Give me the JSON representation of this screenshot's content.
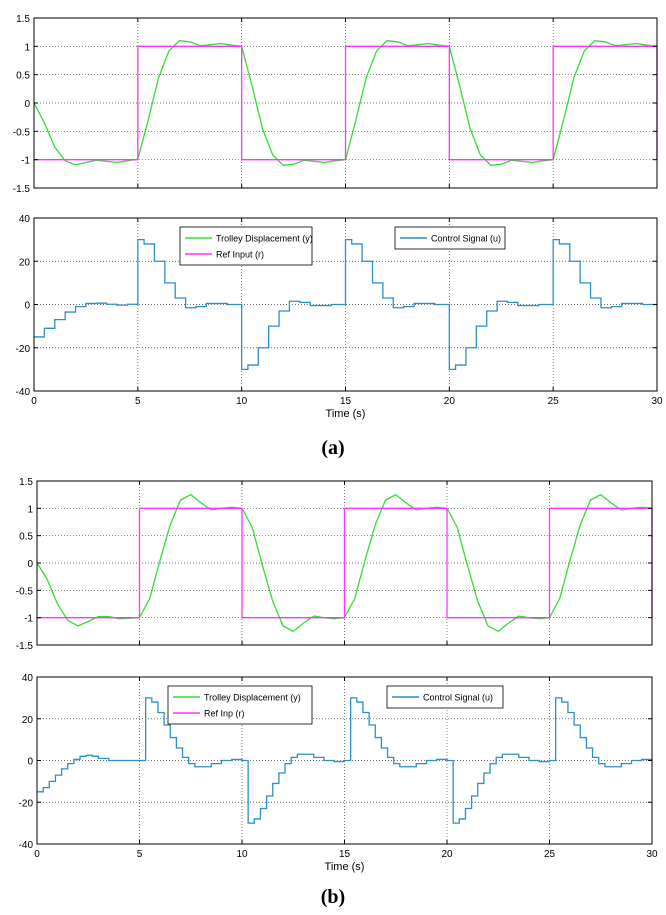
{
  "figure": {
    "label_a": "(a)",
    "label_b": "(b)",
    "colors": {
      "output": "#33dd33",
      "reference": "#ff33ff",
      "control": "#2b8fc8"
    }
  },
  "chart_data": [
    {
      "type": "line",
      "panel": "(a)",
      "subplot": "top",
      "xlabel": "",
      "ylabel": "",
      "xlim": [
        0,
        30
      ],
      "ylim": [
        -1.5,
        1.5
      ],
      "xticks": [
        0,
        5,
        10,
        15,
        20,
        25,
        30
      ],
      "yticks": [
        -1.5,
        -1,
        -0.5,
        0,
        0.5,
        1,
        1.5
      ],
      "ytick_labels": [
        "-1.5",
        "-1",
        "-0.5",
        "0",
        "0.5",
        "1",
        "1.5"
      ],
      "show_xtick_labels": false,
      "grid": true,
      "series": [
        {
          "name": "Trolley Displacement (y)",
          "color": "#33dd33",
          "x": [
            0,
            0.5,
            1,
            1.5,
            2,
            2.5,
            3,
            3.5,
            4,
            4.5,
            5,
            5.5,
            6,
            6.5,
            7,
            7.5,
            8,
            8.5,
            9,
            9.5,
            10,
            10.5,
            11,
            11.5,
            12,
            12.5,
            13,
            13.5,
            14,
            14.5,
            15,
            15.5,
            16,
            16.5,
            17,
            17.5,
            18,
            18.5,
            19,
            19.5,
            20,
            20.5,
            21,
            21.5,
            22,
            22.5,
            23,
            23.5,
            24,
            24.5,
            25,
            25.5,
            26,
            26.5,
            27,
            27.5,
            28,
            28.5,
            29,
            29.5,
            30
          ],
          "y": [
            0,
            -0.35,
            -0.78,
            -1.02,
            -1.09,
            -1.05,
            -1.01,
            -1.03,
            -1.05,
            -1.02,
            -0.99,
            -0.3,
            0.45,
            0.92,
            1.1,
            1.08,
            1.01,
            1.03,
            1.05,
            1.02,
            1.0,
            0.3,
            -0.45,
            -0.92,
            -1.1,
            -1.08,
            -1.01,
            -1.03,
            -1.05,
            -1.02,
            -1.0,
            -0.3,
            0.45,
            0.92,
            1.1,
            1.08,
            1.01,
            1.03,
            1.05,
            1.02,
            1.0,
            0.3,
            -0.45,
            -0.92,
            -1.1,
            -1.08,
            -1.01,
            -1.03,
            -1.05,
            -1.02,
            -1.0,
            -0.3,
            0.45,
            0.92,
            1.1,
            1.08,
            1.01,
            1.03,
            1.05,
            1.02,
            1.0
          ]
        },
        {
          "name": "Ref Input (r)",
          "color": "#ff33ff",
          "step": true,
          "x": [
            0,
            5,
            5,
            10,
            10,
            15,
            15,
            20,
            20,
            25,
            25,
            30,
            30
          ],
          "y": [
            -1,
            -1,
            1,
            1,
            -1,
            -1,
            1,
            1,
            -1,
            -1,
            1,
            1,
            -1
          ]
        }
      ]
    },
    {
      "type": "line",
      "panel": "(a)",
      "subplot": "bottom",
      "xlabel": "Time (s)",
      "ylabel": "",
      "xlim": [
        0,
        30
      ],
      "ylim": [
        -40,
        40
      ],
      "xticks": [
        0,
        5,
        10,
        15,
        20,
        25,
        30
      ],
      "yticks": [
        -40,
        -20,
        0,
        20,
        40
      ],
      "ytick_labels": [
        "-40",
        "-20",
        "0",
        "20",
        "40"
      ],
      "show_xtick_labels": true,
      "grid": true,
      "legend_left": [
        "Trolley Displacement (y)",
        "Ref Input (r)"
      ],
      "legend_right": [
        "Control Signal (u)"
      ],
      "series": [
        {
          "name": "Control Signal (u)",
          "color": "#2b8fc8",
          "step": true,
          "x": [
            0,
            0.5,
            1,
            1.5,
            2,
            2.5,
            3,
            3.5,
            4,
            4.5,
            4.99,
            5,
            5.3,
            5.8,
            6.3,
            6.8,
            7.3,
            7.8,
            8.3,
            8.8,
            9.3,
            9.99,
            10,
            10.3,
            10.8,
            11.3,
            11.8,
            12.3,
            12.8,
            13.3,
            13.8,
            14.3,
            14.99,
            15,
            15.3,
            15.8,
            16.3,
            16.8,
            17.3,
            17.8,
            18.3,
            18.8,
            19.3,
            19.99,
            20,
            20.3,
            20.8,
            21.3,
            21.8,
            22.3,
            22.8,
            23.3,
            23.8,
            24.3,
            24.99,
            25,
            25.3,
            25.8,
            26.3,
            26.8,
            27.3,
            27.8,
            28.3,
            28.8,
            29.3,
            30
          ],
          "y": [
            -15,
            -11,
            -7,
            -3.5,
            -1,
            0.5,
            0.6,
            0.1,
            -0.3,
            0.1,
            0,
            30,
            28,
            20,
            10,
            3,
            -1.5,
            -1,
            0.5,
            0.5,
            0,
            0,
            -30,
            -28,
            -20,
            -10,
            -3,
            1.5,
            1,
            -0.5,
            -0.5,
            0,
            0,
            30,
            28,
            20,
            10,
            3,
            -1.5,
            -1,
            0.5,
            0.5,
            0,
            0,
            -30,
            -28,
            -20,
            -10,
            -3,
            1.5,
            1,
            -0.5,
            -0.5,
            0,
            0,
            30,
            28,
            20,
            10,
            3,
            -1.5,
            -1,
            0.5,
            0.5,
            0,
            0
          ]
        }
      ]
    },
    {
      "type": "line",
      "panel": "(b)",
      "subplot": "top",
      "xlabel": "",
      "ylabel": "",
      "xlim": [
        0,
        30
      ],
      "ylim": [
        -1.5,
        1.5
      ],
      "xticks": [
        0,
        5,
        10,
        15,
        20,
        25,
        30
      ],
      "yticks": [
        -1.5,
        -1,
        -0.5,
        0,
        0.5,
        1,
        1.5
      ],
      "ytick_labels": [
        "-1.5",
        "-1",
        "-0.5",
        "0",
        "0.5",
        "1",
        "1.5"
      ],
      "show_xtick_labels": false,
      "grid": true,
      "series": [
        {
          "name": "Trolley Displacement (y)",
          "color": "#33dd33",
          "x": [
            0,
            0.5,
            1,
            1.5,
            2,
            2.5,
            3,
            3.5,
            4,
            4.5,
            5,
            5.5,
            6,
            6.5,
            7,
            7.5,
            8,
            8.5,
            9,
            9.5,
            10,
            10.5,
            11,
            11.5,
            12,
            12.5,
            13,
            13.5,
            14,
            14.5,
            15,
            15.5,
            16,
            16.5,
            17,
            17.5,
            18,
            18.5,
            19,
            19.5,
            20,
            20.5,
            21,
            21.5,
            22,
            22.5,
            23,
            23.5,
            24,
            24.5,
            25,
            25.5,
            26,
            26.5,
            27,
            27.5,
            28,
            28.5,
            29,
            29.5,
            30
          ],
          "y": [
            0,
            -0.3,
            -0.75,
            -1.05,
            -1.15,
            -1.07,
            -0.98,
            -0.98,
            -1.02,
            -1.01,
            -1.0,
            -0.65,
            0.05,
            0.7,
            1.15,
            1.25,
            1.1,
            0.97,
            1.0,
            1.02,
            1.0,
            0.65,
            -0.05,
            -0.7,
            -1.15,
            -1.25,
            -1.1,
            -0.97,
            -1.0,
            -1.02,
            -1.0,
            -0.65,
            0.05,
            0.7,
            1.15,
            1.25,
            1.1,
            0.97,
            1.0,
            1.02,
            1.0,
            0.65,
            -0.05,
            -0.7,
            -1.15,
            -1.25,
            -1.1,
            -0.97,
            -1.0,
            -1.02,
            -1.0,
            -0.65,
            0.05,
            0.7,
            1.15,
            1.25,
            1.1,
            0.97,
            1.0,
            1.02,
            1.0
          ]
        },
        {
          "name": "Ref Inp (r)",
          "color": "#ff33ff",
          "step": true,
          "x": [
            0,
            5,
            5,
            10,
            10,
            15,
            15,
            20,
            20,
            25,
            25,
            30,
            30
          ],
          "y": [
            -1,
            -1,
            1,
            1,
            -1,
            -1,
            1,
            1,
            -1,
            -1,
            1,
            1,
            -1
          ]
        }
      ]
    },
    {
      "type": "line",
      "panel": "(b)",
      "subplot": "bottom",
      "xlabel": "Time (s)",
      "ylabel": "",
      "xlim": [
        0,
        30
      ],
      "ylim": [
        -40,
        40
      ],
      "xticks": [
        0,
        5,
        10,
        15,
        20,
        25,
        30
      ],
      "yticks": [
        -40,
        -20,
        0,
        20,
        40
      ],
      "ytick_labels": [
        "-40",
        "-20",
        "0",
        "20",
        "40"
      ],
      "show_xtick_labels": true,
      "grid": true,
      "legend_left": [
        "Trolley Displacement (y)",
        "Ref Inp (r)"
      ],
      "legend_right": [
        "Control Signal (u)"
      ],
      "series": [
        {
          "name": "Control Signal (u)",
          "color": "#2b8fc8",
          "step": true,
          "x": [
            0,
            0.3,
            0.6,
            0.9,
            1.2,
            1.5,
            1.8,
            2.1,
            2.4,
            2.7,
            3.0,
            3.5,
            4.0,
            4.5,
            5.0,
            5.3,
            5.6,
            5.9,
            6.2,
            6.5,
            6.8,
            7.1,
            7.4,
            7.7,
            8.0,
            8.5,
            9.0,
            9.5,
            10.0,
            10.3,
            10.6,
            10.9,
            11.2,
            11.5,
            11.8,
            12.1,
            12.4,
            12.7,
            13.0,
            13.5,
            14.0,
            14.5,
            15.0,
            15.3,
            15.6,
            15.9,
            16.2,
            16.5,
            16.8,
            17.1,
            17.4,
            17.7,
            18.0,
            18.5,
            19.0,
            19.5,
            20.0,
            20.3,
            20.6,
            20.9,
            21.2,
            21.5,
            21.8,
            22.1,
            22.4,
            22.7,
            23.0,
            23.5,
            24.0,
            24.5,
            25.0,
            25.3,
            25.6,
            25.9,
            26.2,
            26.5,
            26.8,
            27.1,
            27.4,
            27.7,
            28.0,
            28.5,
            29.0,
            29.5,
            30.0
          ],
          "y": [
            -15,
            -13,
            -10,
            -7,
            -4,
            -1.5,
            0.5,
            2,
            2.5,
            2,
            1,
            0,
            0,
            0,
            0,
            30,
            28,
            23,
            17,
            11,
            6,
            1.5,
            -1.5,
            -3,
            -3,
            -1.5,
            0,
            0.5,
            0,
            -30,
            -28,
            -23,
            -17,
            -11,
            -6,
            -1.5,
            1.5,
            3,
            3,
            1.5,
            0,
            -0.5,
            0,
            30,
            28,
            23,
            17,
            11,
            6,
            1.5,
            -1.5,
            -3,
            -3,
            -1.5,
            0,
            0.5,
            0,
            -30,
            -28,
            -23,
            -17,
            -11,
            -6,
            -1.5,
            1.5,
            3,
            3,
            1.5,
            0,
            -0.5,
            0,
            30,
            28,
            23,
            17,
            11,
            6,
            1.5,
            -1.5,
            -3,
            -3,
            -1.5,
            0,
            0.5,
            0
          ]
        }
      ]
    }
  ]
}
